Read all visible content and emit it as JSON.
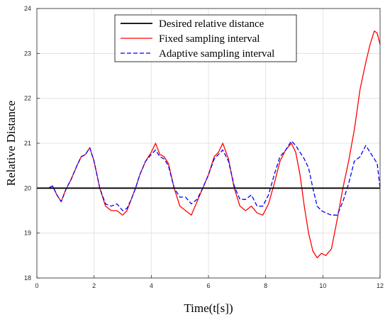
{
  "chart_data": {
    "type": "line",
    "title": "",
    "xlabel": "Time(t[s])",
    "ylabel": "Relative Distance",
    "xlim": [
      0,
      12
    ],
    "ylim": [
      18,
      24
    ],
    "xticks": [
      0,
      2,
      4,
      6,
      8,
      10,
      12
    ],
    "yticks": [
      18,
      19,
      20,
      21,
      22,
      23,
      24
    ],
    "grid": true,
    "legend_position": "top-center",
    "series": [
      {
        "name": "Desired relative distance",
        "color": "#000000",
        "style": "solid",
        "x": [
          0,
          12
        ],
        "y": [
          20,
          20
        ]
      },
      {
        "name": "Fixed sampling interval",
        "color": "#ff0000",
        "style": "solid",
        "x": [
          0,
          0.4,
          0.55,
          0.7,
          0.85,
          1.0,
          1.2,
          1.4,
          1.55,
          1.7,
          1.85,
          2.0,
          2.2,
          2.4,
          2.6,
          2.8,
          3.0,
          3.15,
          3.3,
          3.45,
          3.6,
          3.8,
          4.0,
          4.15,
          4.3,
          4.45,
          4.6,
          4.8,
          5.0,
          5.2,
          5.4,
          5.6,
          5.8,
          6.0,
          6.2,
          6.35,
          6.5,
          6.7,
          6.9,
          7.1,
          7.3,
          7.5,
          7.7,
          7.9,
          8.1,
          8.3,
          8.5,
          8.7,
          8.9,
          9.05,
          9.2,
          9.35,
          9.5,
          9.65,
          9.8,
          9.95,
          10.1,
          10.3,
          10.5,
          10.7,
          10.9,
          11.1,
          11.3,
          11.5,
          11.65,
          11.8,
          11.9,
          12.0
        ],
        "y": [
          20.0,
          20.0,
          20.05,
          19.85,
          19.7,
          19.95,
          20.2,
          20.5,
          20.7,
          20.75,
          20.9,
          20.6,
          20.0,
          19.6,
          19.5,
          19.5,
          19.4,
          19.5,
          19.75,
          20.0,
          20.3,
          20.6,
          20.8,
          21.0,
          20.75,
          20.7,
          20.55,
          20.0,
          19.6,
          19.5,
          19.4,
          19.7,
          20.0,
          20.3,
          20.7,
          20.8,
          21.0,
          20.65,
          20.0,
          19.6,
          19.5,
          19.6,
          19.45,
          19.4,
          19.65,
          20.1,
          20.6,
          20.85,
          21.0,
          20.8,
          20.3,
          19.6,
          19.0,
          18.6,
          18.45,
          18.55,
          18.5,
          18.65,
          19.3,
          20.0,
          20.6,
          21.3,
          22.2,
          22.8,
          23.2,
          23.5,
          23.45,
          23.2
        ]
      },
      {
        "name": "Adaptive sampling interval",
        "color": "#0000ff",
        "style": "dashed",
        "x": [
          0,
          0.4,
          0.55,
          0.7,
          0.85,
          1.0,
          1.2,
          1.4,
          1.55,
          1.7,
          1.85,
          2.0,
          2.2,
          2.4,
          2.6,
          2.8,
          3.0,
          3.15,
          3.3,
          3.45,
          3.6,
          3.8,
          4.0,
          4.15,
          4.3,
          4.45,
          4.6,
          4.8,
          5.0,
          5.2,
          5.4,
          5.6,
          5.8,
          6.0,
          6.2,
          6.35,
          6.5,
          6.7,
          6.9,
          7.1,
          7.3,
          7.5,
          7.7,
          7.9,
          8.1,
          8.3,
          8.5,
          8.7,
          8.9,
          9.05,
          9.2,
          9.35,
          9.5,
          9.65,
          9.8,
          9.95,
          10.1,
          10.3,
          10.5,
          10.7,
          10.9,
          11.1,
          11.3,
          11.5,
          11.65,
          11.8,
          11.9,
          12.0
        ],
        "y": [
          20.0,
          20.0,
          20.05,
          19.85,
          19.7,
          19.95,
          20.2,
          20.5,
          20.7,
          20.75,
          20.9,
          20.6,
          20.0,
          19.65,
          19.6,
          19.65,
          19.5,
          19.55,
          19.75,
          20.0,
          20.3,
          20.6,
          20.75,
          20.85,
          20.7,
          20.65,
          20.5,
          20.0,
          19.8,
          19.8,
          19.65,
          19.75,
          20.0,
          20.3,
          20.65,
          20.75,
          20.85,
          20.6,
          20.05,
          19.75,
          19.75,
          19.85,
          19.6,
          19.6,
          19.85,
          20.3,
          20.7,
          20.85,
          21.05,
          20.95,
          20.8,
          20.65,
          20.45,
          20.0,
          19.6,
          19.5,
          19.45,
          19.4,
          19.4,
          19.7,
          20.1,
          20.6,
          20.7,
          20.95,
          20.8,
          20.65,
          20.55,
          20.0
        ]
      }
    ]
  }
}
